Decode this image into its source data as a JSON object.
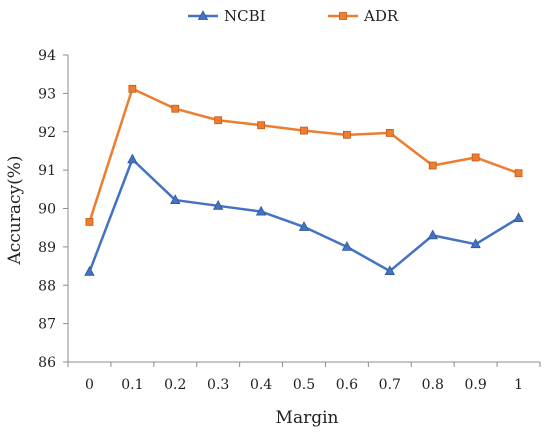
{
  "chart_data": {
    "type": "line",
    "title": "",
    "xlabel": "Margin",
    "ylabel": "Accuracy(%)",
    "categories": [
      "0",
      "0.1",
      "0.2",
      "0.3",
      "0.4",
      "0.5",
      "0.6",
      "0.7",
      "0.8",
      "0.9",
      "1"
    ],
    "ylim": [
      86,
      94
    ],
    "yticks": [
      "86",
      "87",
      "88",
      "89",
      "90",
      "91",
      "92",
      "93",
      "94"
    ],
    "grid": false,
    "legend_position": "top",
    "series": [
      {
        "name": "NCBI",
        "color": "#4472C4",
        "marker": "triangle",
        "values": [
          88.35,
          91.28,
          90.22,
          90.07,
          89.92,
          89.52,
          89.0,
          88.37,
          89.3,
          89.07,
          89.75
        ]
      },
      {
        "name": "ADR",
        "color": "#ED7D31",
        "marker": "square",
        "values": [
          89.65,
          93.12,
          92.6,
          92.3,
          92.17,
          92.03,
          91.92,
          91.97,
          91.12,
          91.33,
          90.92
        ]
      }
    ]
  }
}
